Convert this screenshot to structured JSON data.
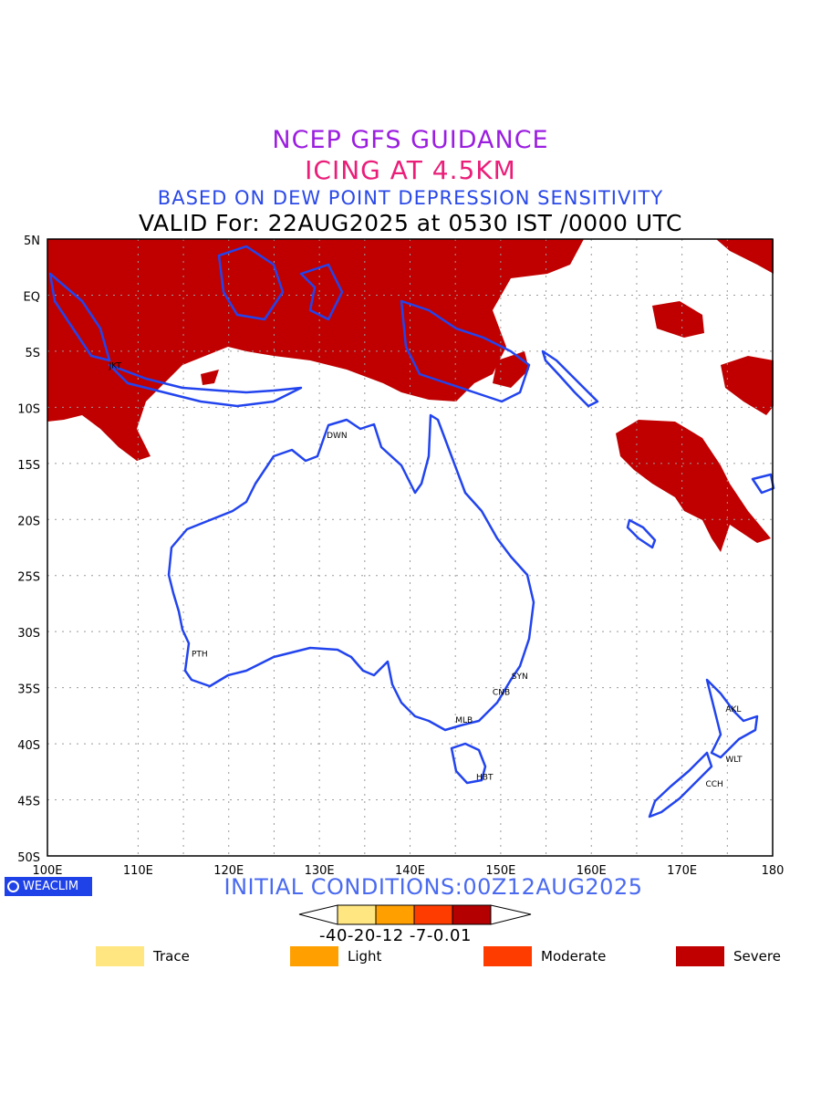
{
  "titles": {
    "line1": "NCEP GFS GUIDANCE",
    "line2": "ICING AT 4.5KM",
    "line3": "BASED ON DEW POINT DEPRESSION SENSITIVITY",
    "line4": "VALID For: 22AUG2025 at 0530 IST /0000 UTC"
  },
  "axes": {
    "lat_labels": [
      "5N",
      "EQ",
      "5S",
      "10S",
      "15S",
      "20S",
      "25S",
      "30S",
      "35S",
      "40S",
      "45S",
      "50S"
    ],
    "lon_labels": [
      "100E",
      "110E",
      "120E",
      "130E",
      "140E",
      "150E",
      "160E",
      "170E",
      "180"
    ]
  },
  "cities": [
    {
      "code": "JKT",
      "lon": 106.8,
      "lat": -6.2
    },
    {
      "code": "DWN",
      "lon": 130.8,
      "lat": -12.4
    },
    {
      "code": "PTH",
      "lon": 115.9,
      "lat": -31.9
    },
    {
      "code": "SYN",
      "lon": 151.2,
      "lat": -33.9
    },
    {
      "code": "CNB",
      "lon": 149.1,
      "lat": -35.3
    },
    {
      "code": "MLB",
      "lon": 145.0,
      "lat": -37.8
    },
    {
      "code": "HBT",
      "lon": 147.3,
      "lat": -42.9
    },
    {
      "code": "AKL",
      "lon": 174.8,
      "lat": -36.8
    },
    {
      "code": "WLT",
      "lon": 174.8,
      "lat": -41.3
    },
    {
      "code": "CCH",
      "lon": 172.6,
      "lat": -43.5
    }
  ],
  "logo": "WEACLIM",
  "initial_conditions": "INITIAL CONDITIONS:00Z12AUG2025",
  "colorbar": {
    "labels": "-40-20-12 -7-0.01",
    "colors": [
      "#ffe680",
      "#ffa000",
      "#ff3c00",
      "#b40000"
    ]
  },
  "legend": [
    {
      "label": "Trace",
      "color": "#ffe680"
    },
    {
      "label": "Light",
      "color": "#ffa000"
    },
    {
      "label": "Moderate",
      "color": "#ff3c00"
    },
    {
      "label": "Severe",
      "color": "#c00000"
    }
  ],
  "colors": {
    "coast": "#2244ee",
    "severe": "#c00000",
    "grid": "#9a9a9a"
  }
}
